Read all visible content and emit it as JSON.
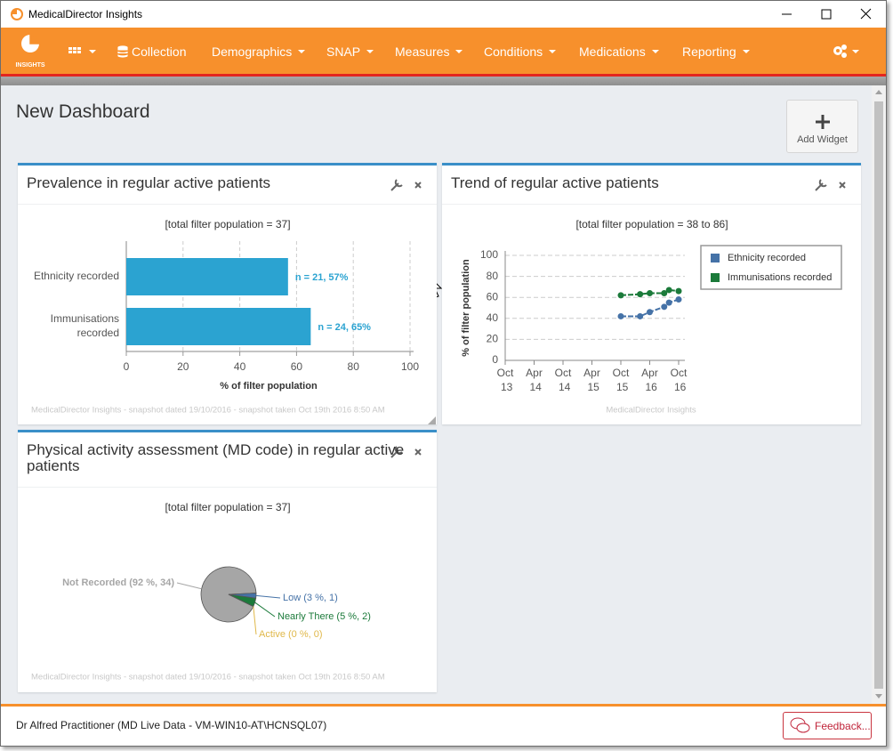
{
  "window": {
    "title": "MedicalDirector Insights"
  },
  "nav": {
    "logo": "INSIGHTS",
    "items": [
      "Collection",
      "Demographics",
      "SNAP",
      "Measures",
      "Conditions",
      "Medications",
      "Reporting"
    ]
  },
  "dashboard": {
    "title": "New Dashboard",
    "add_widget": "Add Widget"
  },
  "chart_data": [
    {
      "type": "bar",
      "orientation": "horizontal",
      "title": "Prevalence in regular active patients",
      "subtitle": "[total filter population = 37]",
      "categories": [
        "Ethnicity recorded",
        "Immunisations recorded"
      ],
      "values": [
        57,
        65
      ],
      "value_labels": [
        "n = 21, 57%",
        "n = 24, 65%"
      ],
      "color": "#2ba3d1",
      "xlim": [
        0,
        100
      ],
      "xticks": [
        0,
        20,
        40,
        60,
        80,
        100
      ],
      "xlabel": "% of filter population",
      "grid": true,
      "credit": "MedicalDirector Insights - snapshot dated 19/10/2016 - snapshot taken Oct 19th 2016 8:50 AM"
    },
    {
      "type": "line",
      "title": "Trend of regular active patients",
      "subtitle": "[total filter population = 38 to 86]",
      "x": [
        "Oct 15",
        "Feb 16",
        "Apr 16",
        "Jul 16",
        "Aug 16",
        "Oct 16"
      ],
      "series": [
        {
          "name": "Ethnicity recorded",
          "color": "#4572a7",
          "values": [
            42,
            42,
            46,
            51,
            55,
            58
          ]
        },
        {
          "name": "Immunisations recorded",
          "color": "#1b7a3a",
          "values": [
            62,
            63,
            64,
            64,
            67,
            66
          ]
        }
      ],
      "xlim": [
        "Oct 13",
        "Oct 16"
      ],
      "xticks": [
        "Oct 13",
        "Apr 14",
        "Oct 14",
        "Apr 15",
        "Oct 15",
        "Apr 16",
        "Oct 16"
      ],
      "ylim": [
        0,
        100
      ],
      "yticks": [
        0,
        20,
        40,
        60,
        80,
        100
      ],
      "ylabel": "% of filter population",
      "grid": true,
      "legend": "top-right",
      "credit": "MedicalDirector Insights"
    },
    {
      "type": "pie",
      "title": "Physical activity assessment (MD code) in regular active patients",
      "subtitle": "[total filter population = 37]",
      "values": [
        92,
        3,
        5,
        0
      ],
      "value_labels": [
        "Not Recorded (92 %, 34)",
        "Low (3 %, 1)",
        "Nearly There (5 %, 2)",
        "Active (0 %, 0)"
      ],
      "colors": [
        "#a6a6a6",
        "#4572a7",
        "#1b7a3a",
        "#e0b84a"
      ],
      "credit": "MedicalDirector Insights - snapshot dated 19/10/2016 - snapshot taken Oct 19th 2016 8:50 AM"
    }
  ],
  "footer": {
    "connection": "Dr Alfred Practitioner (MD Live Data - VM-WIN10-AT\\HCNSQL07)",
    "feedback": "Feedback..."
  }
}
